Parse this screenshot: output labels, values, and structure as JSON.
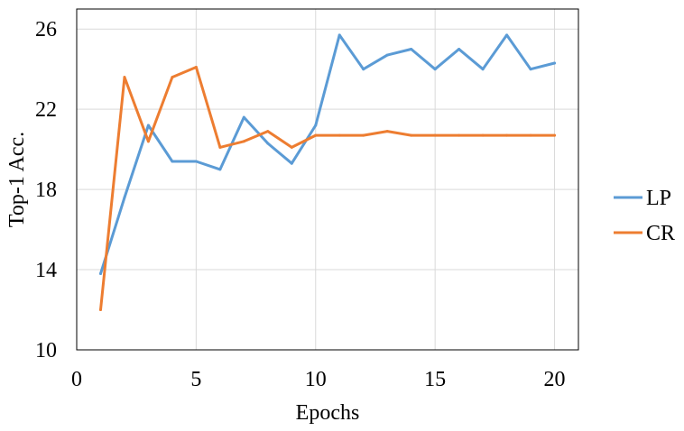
{
  "chart_data": {
    "type": "line",
    "title": "",
    "xlabel": "Epochs",
    "ylabel": "Top-1 Acc.",
    "xlim": [
      0,
      21
    ],
    "ylim": [
      10,
      27
    ],
    "xticks": [
      0,
      5,
      10,
      15,
      20
    ],
    "yticks": [
      10,
      14,
      18,
      22,
      26
    ],
    "grid": true,
    "legend_position": "right",
    "x": [
      1,
      2,
      3,
      4,
      5,
      6,
      7,
      8,
      9,
      10,
      11,
      12,
      13,
      14,
      15,
      16,
      17,
      18,
      19,
      20
    ],
    "series": [
      {
        "name": "LP",
        "color": "#5b9bd5",
        "values": [
          13.8,
          17.6,
          21.2,
          19.4,
          19.4,
          19.0,
          21.6,
          20.3,
          19.3,
          21.2,
          25.7,
          24.0,
          24.7,
          25.0,
          24.0,
          25.0,
          24.0,
          25.7,
          24.0,
          24.3
        ]
      },
      {
        "name": "CR",
        "color": "#ed7d31",
        "values": [
          12.0,
          23.6,
          20.4,
          23.6,
          24.1,
          20.1,
          20.4,
          20.9,
          20.1,
          20.7,
          20.7,
          20.7,
          20.9,
          20.7,
          20.7,
          20.7,
          20.7,
          20.7,
          20.7,
          20.7
        ]
      }
    ]
  }
}
